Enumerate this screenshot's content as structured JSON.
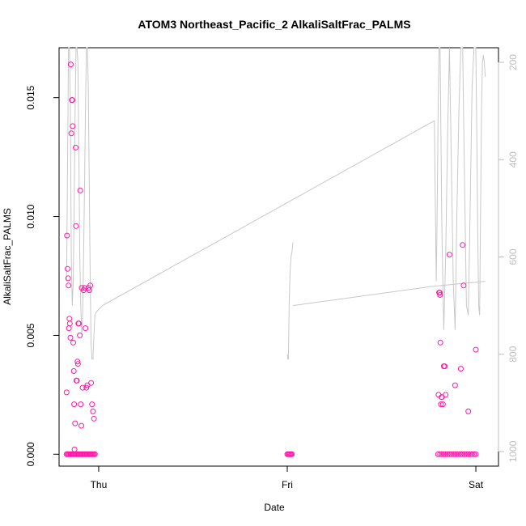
{
  "chart_data": {
    "type": "scatter",
    "title": "ATOM3 Northeast_Pacific_2 AlkaliSaltFrac_PALMS",
    "xlabel": "Date",
    "ylabel": "AlkaliSaltFrac_PALMS",
    "x_ticks": [
      "Thu",
      "Fri",
      "Sat"
    ],
    "xlim": [
      -0.21,
      2.12
    ],
    "ylim": [
      -0.0005,
      0.0171
    ],
    "y_ticks": [
      "0.000",
      "0.005",
      "0.010",
      "0.015"
    ],
    "y_tick_values": [
      0.0,
      0.005,
      0.01,
      0.015
    ],
    "right_axis": {
      "ticks": [
        "200",
        "400",
        "600",
        "800",
        "1000"
      ],
      "tick_values": [
        200,
        400,
        600,
        800,
        1000
      ],
      "lim": [
        1030,
        170
      ]
    },
    "colors": {
      "points": "#ff1aa8",
      "altitude_line": "#c8c8c8",
      "axis": "#000000",
      "right_axis": "#bdbdbd"
    },
    "points": {
      "x": [
        -0.17,
        -0.165,
        -0.16,
        -0.155,
        -0.15,
        -0.145,
        -0.14,
        -0.135,
        -0.13,
        -0.125,
        -0.12,
        -0.115,
        -0.11,
        -0.105,
        -0.1,
        -0.095,
        -0.09,
        -0.085,
        -0.08,
        -0.075,
        -0.07,
        -0.065,
        -0.06,
        -0.055,
        -0.05,
        -0.045,
        -0.04,
        -0.035,
        -0.03,
        -0.025,
        -0.02,
        -0.17,
        -0.168,
        -0.165,
        -0.162,
        -0.16,
        -0.158,
        -0.155,
        -0.153,
        -0.15,
        -0.148,
        -0.145,
        -0.142,
        -0.14,
        -0.138,
        -0.135,
        -0.132,
        -0.13,
        -0.128,
        -0.125,
        -0.122,
        -0.12,
        -0.118,
        -0.115,
        -0.112,
        -0.11,
        -0.108,
        -0.105,
        -0.1,
        -0.098,
        -0.095,
        -0.092,
        -0.09,
        -0.085,
        -0.08,
        -0.075,
        -0.07,
        -0.065,
        -0.06,
        -0.055,
        -0.05,
        -0.045,
        -0.04,
        -0.035,
        -0.03,
        -0.025,
        1.0,
        1.005,
        1.01,
        1.015,
        1.02,
        1.025,
        1.8,
        1.81,
        1.82,
        1.83,
        1.84,
        1.85,
        1.86,
        1.87,
        1.88,
        1.89,
        1.9,
        1.91,
        1.92,
        1.93,
        1.94,
        1.95,
        1.96,
        1.97,
        1.98,
        1.99,
        2.0,
        1.802,
        1.805,
        1.808,
        1.81,
        1.812,
        1.815,
        1.818,
        1.82,
        1.825,
        1.83,
        1.835,
        1.84,
        1.86,
        1.89,
        1.92,
        1.93,
        1.935,
        1.96,
        2.0
      ],
      "y": [
        0,
        0,
        0,
        0,
        0,
        0,
        0,
        0,
        0,
        0,
        0,
        0,
        0,
        0,
        0,
        0,
        0,
        0,
        0,
        0,
        0,
        0,
        0,
        0,
        0,
        0,
        0,
        0,
        0,
        0,
        0,
        0.0026,
        0.0092,
        0.0078,
        0.0074,
        0.0071,
        0.0053,
        0.0057,
        0.0055,
        0.0049,
        0.0164,
        0.0135,
        0.0149,
        0.0149,
        0.0138,
        0.0047,
        0.0035,
        0.0021,
        0.0002,
        0.0013,
        0.0129,
        0.0096,
        0.0031,
        0.0031,
        0.0039,
        0.0038,
        0.0055,
        0.0055,
        0.005,
        0.0111,
        0.0021,
        0.0012,
        0.007,
        0.0028,
        0.0069,
        0.007,
        0.0053,
        0.0028,
        0.0029,
        0.007,
        0.0069,
        0.0071,
        0.003,
        0.0021,
        0.0018,
        0.0015,
        0,
        0,
        0,
        0,
        0,
        0,
        0,
        0,
        0,
        0,
        0,
        0,
        0,
        0,
        0,
        0,
        0,
        0,
        0,
        0,
        0,
        0,
        0,
        0,
        0,
        0,
        0,
        0.0025,
        0.0068,
        0.0068,
        0.0067,
        0.0047,
        0.0021,
        0.0024,
        0.0024,
        0.0021,
        0.0037,
        0.0037,
        0.0025,
        0.0084,
        0.0029,
        0.0036,
        0.0088,
        0.0071,
        0.0018,
        0.0044
      ]
    },
    "altitude_line": {
      "segments": [
        {
          "x": [
            -0.17,
            -0.165,
            -0.16,
            -0.155,
            -0.15,
            -0.145,
            -0.14,
            -0.135,
            -0.13,
            -0.125,
            -0.12,
            -0.115,
            -0.11,
            -0.105,
            -0.1,
            -0.095,
            -0.09,
            -0.085,
            -0.08,
            -0.075,
            -0.07,
            -0.065,
            -0.06,
            -0.055,
            -0.05,
            -0.045,
            -0.04,
            -0.035,
            -0.03,
            -0.025,
            -0.02,
            -0.015,
            -0.01,
            -0.005,
            0.0,
            0.005,
            0.01,
            0.015,
            0.02
          ],
          "y": [
            650,
            400,
            170,
            170,
            300,
            600,
            700,
            650,
            500,
            300,
            170,
            170,
            200,
            400,
            600,
            700,
            760,
            720,
            600,
            450,
            300,
            170,
            170,
            250,
            450,
            650,
            780,
            810,
            810,
            760,
            720,
            715,
            712,
            710,
            708,
            706,
            704,
            702,
            700
          ]
        },
        {
          "x": [
            0.02,
            1.78
          ],
          "y": [
            700,
            320
          ]
        },
        {
          "x": [
            1.78,
            1.785,
            1.79,
            1.795,
            1.8,
            1.805,
            1.81,
            1.815,
            1.82,
            1.83,
            1.84,
            1.85,
            1.86,
            1.87,
            1.88,
            1.89,
            1.9,
            1.91,
            1.92,
            1.93,
            1.94,
            1.95,
            1.96,
            1.97,
            1.98,
            1.99,
            2.0,
            2.005,
            2.01,
            2.015,
            2.02,
            2.025,
            2.03,
            2.035,
            2.04,
            2.045,
            2.05
          ],
          "y": [
            320,
            480,
            650,
            500,
            300,
            170,
            170,
            350,
            550,
            750,
            600,
            350,
            170,
            400,
            650,
            750,
            500,
            300,
            170,
            170,
            450,
            700,
            720,
            500,
            250,
            170,
            170,
            350,
            550,
            700,
            720,
            500,
            300,
            200,
            185,
            200,
            230
          ]
        },
        {
          "x": [
            1.0,
            1.003,
            1.006,
            1.01,
            1.015,
            1.02,
            1.025,
            1.03
          ],
          "y": [
            800,
            810,
            810,
            700,
            630,
            600,
            590,
            570
          ]
        },
        {
          "x": [
            1.03,
            1.78
          ],
          "y": [
            700,
            660
          ]
        },
        {
          "x": [
            1.78,
            2.05
          ],
          "y": [
            660,
            650
          ]
        }
      ]
    }
  }
}
